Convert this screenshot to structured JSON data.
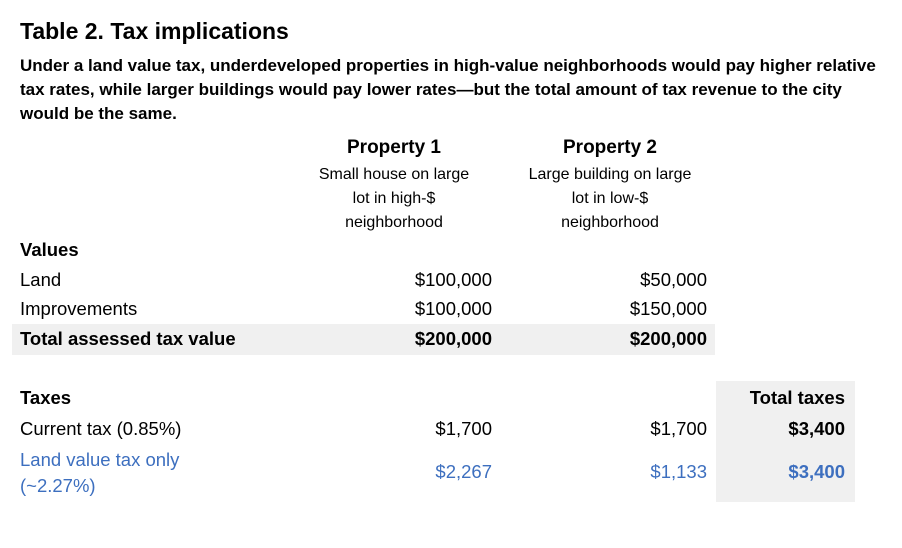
{
  "table": {
    "title": "Table 2. Tax implications",
    "subtitle": "Under a land value tax, underdeveloped properties in high-value neighborhoods would pay higher relative tax rates, while larger buildings would pay lower rates—but the total amount of tax revenue to the city would be the same."
  },
  "properties": [
    {
      "name": "Property 1",
      "desc_lines": [
        "Small house on large",
        "lot in high-$",
        "neighborhood"
      ]
    },
    {
      "name": "Property 2",
      "desc_lines": [
        "Large building on large",
        "lot in low-$",
        "neighborhood"
      ]
    }
  ],
  "values": {
    "header": "Values",
    "rows": [
      {
        "label": "Land",
        "p1": "$100,000",
        "p2": "$50,000"
      },
      {
        "label": "Improvements",
        "p1": "$100,000",
        "p2": "$150,000"
      },
      {
        "label": "Total assessed tax value",
        "p1": "$200,000",
        "p2": "$200,000"
      }
    ]
  },
  "taxes": {
    "header": "Taxes",
    "total_header": "Total taxes",
    "current": {
      "label": "Current tax (0.85%)",
      "p1": "$1,700",
      "p2": "$1,700",
      "total": "$3,400"
    },
    "lvt": {
      "label_line1": "Land value tax only",
      "label_line2": "(~2.27%)",
      "p1": "$2,267",
      "p2": "$1,133",
      "total": "$3,400"
    }
  },
  "colors": {
    "accent_blue": "#3d6fbf",
    "band_gray": "#f0f0f0"
  }
}
